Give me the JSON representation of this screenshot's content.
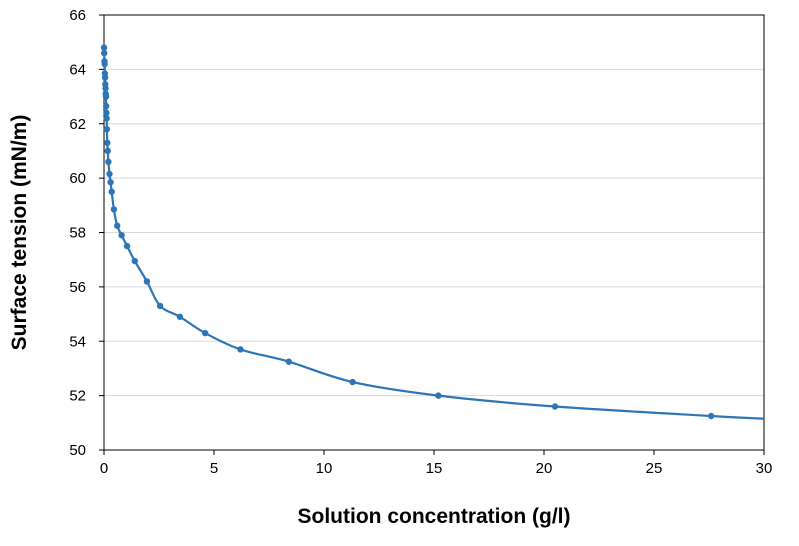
{
  "chart_data": {
    "type": "line",
    "title": "",
    "xlabel": "Solution concentration (g/l)",
    "ylabel": "Surface tension (mN/m)",
    "xlim": [
      0,
      30
    ],
    "ylim": [
      50,
      66
    ],
    "x_ticks": [
      "0",
      "5",
      "10",
      "15",
      "20",
      "25",
      "30"
    ],
    "y_ticks": [
      "50",
      "52",
      "54",
      "56",
      "58",
      "60",
      "62",
      "64",
      "66"
    ],
    "grid": "horizontal",
    "legend": "none",
    "color": "#2E75B6",
    "series": [
      {
        "markers": true,
        "x": [
          0.0,
          0.01,
          0.02,
          0.03,
          0.04,
          0.05,
          0.06,
          0.07,
          0.08,
          0.09,
          0.1,
          0.11,
          0.12,
          0.13,
          0.15,
          0.17,
          0.2,
          0.25,
          0.3,
          0.35,
          0.45,
          0.6,
          0.8,
          1.05,
          1.4,
          1.95,
          2.55,
          3.45,
          4.6,
          6.2,
          8.4,
          11.3,
          15.2,
          20.5,
          27.6
        ],
        "y": [
          64.8,
          64.6,
          64.3,
          64.2,
          63.85,
          63.7,
          63.45,
          63.3,
          63.1,
          63.0,
          62.65,
          62.4,
          62.2,
          61.8,
          61.3,
          61.0,
          60.6,
          60.15,
          59.85,
          59.5,
          58.85,
          58.25,
          57.9,
          57.5,
          56.95,
          56.2,
          55.3,
          54.9,
          54.3,
          53.7,
          53.25,
          52.5,
          52.0,
          51.6,
          51.25
        ]
      }
    ],
    "curve_end": {
      "x": 30,
      "y": 51.15
    }
  }
}
